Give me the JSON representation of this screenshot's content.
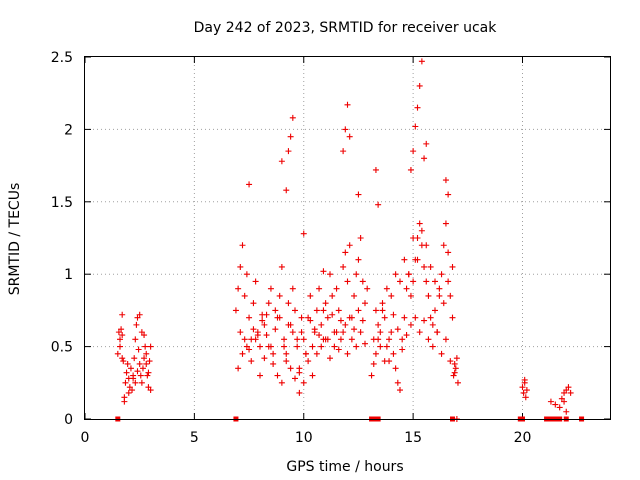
{
  "chart_data": {
    "type": "scatter",
    "title": "Day 242 of 2023, SRMTID for receiver ucak",
    "xlabel": "GPS time / hours",
    "ylabel": "SRMTID / TECUs",
    "xlim": [
      0,
      24
    ],
    "ylim": [
      0,
      2.5
    ],
    "xticks": [
      "0",
      "5",
      "10",
      "15",
      "20"
    ],
    "yticks": [
      "0",
      "0.5",
      "1",
      "1.5",
      "2",
      "2.5"
    ],
    "grid": true,
    "marker": "+",
    "color": "#ee0000",
    "series": [
      {
        "name": "SRMTID",
        "x": [
          1.5,
          1.55,
          1.6,
          1.65,
          1.7,
          1.75,
          1.8,
          1.85,
          1.9,
          1.95,
          2.0,
          2.05,
          2.1,
          2.15,
          2.2,
          2.25,
          2.3,
          2.35,
          2.4,
          2.45,
          2.5,
          2.55,
          2.6,
          2.65,
          2.7,
          2.75,
          2.8,
          2.85,
          2.9,
          2.95,
          3.0,
          1.6,
          1.7,
          1.8,
          2.0,
          2.2,
          2.4,
          2.6,
          2.8,
          3.0,
          1.7,
          2.3,
          2.5,
          2.7,
          2.9,
          6.9,
          7.0,
          7.1,
          7.2,
          7.3,
          7.4,
          7.5,
          7.6,
          7.7,
          7.8,
          7.9,
          8.0,
          8.1,
          8.2,
          8.3,
          8.4,
          8.5,
          8.6,
          8.7,
          8.8,
          8.9,
          9.0,
          9.1,
          9.2,
          9.3,
          9.4,
          9.5,
          9.6,
          9.7,
          9.8,
          9.9,
          10.0,
          10.1,
          10.2,
          10.3,
          10.4,
          10.5,
          10.6,
          10.7,
          10.8,
          10.9,
          11.0,
          11.1,
          11.2,
          11.3,
          11.4,
          11.5,
          11.6,
          11.7,
          11.8,
          11.9,
          12.0,
          12.1,
          12.2,
          12.3,
          12.4,
          12.5,
          12.6,
          12.7,
          12.8,
          12.9,
          7.0,
          7.2,
          7.4,
          7.6,
          7.8,
          8.0,
          8.2,
          8.4,
          8.6,
          8.8,
          9.0,
          9.2,
          9.4,
          9.6,
          9.8,
          10.0,
          10.2,
          10.4,
          10.6,
          10.8,
          11.0,
          11.2,
          11.4,
          11.6,
          11.8,
          12.0,
          12.2,
          12.4,
          12.6,
          12.8,
          7.1,
          7.3,
          7.5,
          7.7,
          7.9,
          8.1,
          8.3,
          8.5,
          8.7,
          8.9,
          9.1,
          9.3,
          9.5,
          9.7,
          9.9,
          10.1,
          10.3,
          10.5,
          10.7,
          10.9,
          11.1,
          11.3,
          11.5,
          11.7,
          11.9,
          12.1,
          12.3,
          12.5,
          12.7,
          7.5,
          9.0,
          9.2,
          9.3,
          9.4,
          9.5,
          11.8,
          11.9,
          12.0,
          12.1,
          10.0,
          10.9,
          12.5,
          9.8,
          13.1,
          13.2,
          13.3,
          13.4,
          13.5,
          13.6,
          13.7,
          13.8,
          13.9,
          14.0,
          14.1,
          14.2,
          14.3,
          14.4,
          14.5,
          14.6,
          14.7,
          14.8,
          14.9,
          15.0,
          15.1,
          15.2,
          15.3,
          15.4,
          15.5,
          15.6,
          15.7,
          15.8,
          15.9,
          16.0,
          16.1,
          16.2,
          16.3,
          16.4,
          16.5,
          16.6,
          16.7,
          16.8,
          13.2,
          13.4,
          13.6,
          13.8,
          14.0,
          14.2,
          14.4,
          14.6,
          14.8,
          15.0,
          15.2,
          15.4,
          15.6,
          15.8,
          16.0,
          16.2,
          16.4,
          16.6,
          16.8,
          13.3,
          13.5,
          13.7,
          13.9,
          14.1,
          14.3,
          14.5,
          14.7,
          14.9,
          15.1,
          15.3,
          15.5,
          15.7,
          15.9,
          16.1,
          16.3,
          16.5,
          16.7,
          14.9,
          15.0,
          15.1,
          15.2,
          15.3,
          15.4,
          15.5,
          15.6,
          13.3,
          13.4,
          16.5,
          16.6,
          16.85,
          16.9,
          16.95,
          17.0,
          17.05,
          16.9,
          17.0,
          20.0,
          20.05,
          20.1,
          20.15,
          20.2,
          20.1,
          21.3,
          21.5,
          21.7,
          21.8,
          21.9,
          22.0,
          22.1,
          22.2,
          21.9,
          22.0
        ],
        "y": [
          0.45,
          0.6,
          0.5,
          0.62,
          0.58,
          0.4,
          0.15,
          0.25,
          0.32,
          0.38,
          0.28,
          0.22,
          0.35,
          0.2,
          0.3,
          0.42,
          0.55,
          0.65,
          0.7,
          0.48,
          0.38,
          0.3,
          0.25,
          0.35,
          0.42,
          0.5,
          0.38,
          0.3,
          0.22,
          0.4,
          0.2,
          0.55,
          0.72,
          0.12,
          0.18,
          0.28,
          0.33,
          0.6,
          0.45,
          0.5,
          0.42,
          0.25,
          0.72,
          0.58,
          0.32,
          0.75,
          0.9,
          1.05,
          1.2,
          0.85,
          1.0,
          0.7,
          0.55,
          0.8,
          0.95,
          0.6,
          0.5,
          0.72,
          0.65,
          0.58,
          0.8,
          0.9,
          0.45,
          0.75,
          0.7,
          0.85,
          1.05,
          0.55,
          0.4,
          0.8,
          0.65,
          0.9,
          0.75,
          0.5,
          0.35,
          0.6,
          0.55,
          0.45,
          0.7,
          0.85,
          0.5,
          0.6,
          0.75,
          0.9,
          0.65,
          0.55,
          0.8,
          0.7,
          1.0,
          0.85,
          0.6,
          0.9,
          0.75,
          0.55,
          1.05,
          1.15,
          0.95,
          1.2,
          0.7,
          0.85,
          1.0,
          1.1,
          1.25,
          0.95,
          0.8,
          0.9,
          0.35,
          0.45,
          0.5,
          0.4,
          0.55,
          0.3,
          0.42,
          0.5,
          0.38,
          0.3,
          0.25,
          0.45,
          0.35,
          0.28,
          0.32,
          0.25,
          0.4,
          0.3,
          0.45,
          0.5,
          0.55,
          0.42,
          0.5,
          0.48,
          0.6,
          0.45,
          0.55,
          0.5,
          0.6,
          0.52,
          0.6,
          0.55,
          0.48,
          0.62,
          0.58,
          0.68,
          0.72,
          0.5,
          0.62,
          0.7,
          0.5,
          0.65,
          0.6,
          0.55,
          0.7,
          0.45,
          0.68,
          0.62,
          0.58,
          0.75,
          0.55,
          0.72,
          0.6,
          0.68,
          0.65,
          0.7,
          0.62,
          0.75,
          0.68,
          1.62,
          1.78,
          1.58,
          1.85,
          1.95,
          2.08,
          1.85,
          2.0,
          2.17,
          1.95,
          1.28,
          1.02,
          1.55,
          0.18,
          0.3,
          0.38,
          0.45,
          0.55,
          0.6,
          0.8,
          0.7,
          0.5,
          0.4,
          0.6,
          0.45,
          0.35,
          0.25,
          0.2,
          0.55,
          0.7,
          0.9,
          1.0,
          0.85,
          0.95,
          1.1,
          1.25,
          1.35,
          1.2,
          1.05,
          0.95,
          0.85,
          0.7,
          0.65,
          0.75,
          0.6,
          0.9,
          1.0,
          1.2,
          1.35,
          1.15,
          0.85,
          0.7,
          0.55,
          0.65,
          0.75,
          0.9,
          0.85,
          1.0,
          0.95,
          1.1,
          1.0,
          1.25,
          1.1,
          1.3,
          1.2,
          1.05,
          0.95,
          0.85,
          0.8,
          0.95,
          1.05,
          0.75,
          0.5,
          0.4,
          0.55,
          0.72,
          0.62,
          0.48,
          0.58,
          0.65,
          0.7,
          0.6,
          0.68,
          0.55,
          0.5,
          0.6,
          0.45,
          0.55,
          0.4,
          1.72,
          1.85,
          2.02,
          2.15,
          2.3,
          2.47,
          1.8,
          1.9,
          1.72,
          1.48,
          1.65,
          1.55,
          0.3,
          0.38,
          0.35,
          0.42,
          0.25,
          0.32,
          0.0,
          0.22,
          0.18,
          0.25,
          0.15,
          0.2,
          0.27,
          0.12,
          0.1,
          0.08,
          0.14,
          0.18,
          0.2,
          0.22,
          0.18,
          0.12,
          0.05
        ],
        "zero_x": [
          1.5,
          6.9,
          13.1,
          13.3,
          13.4,
          16.8,
          19.9,
          20.0,
          21.1,
          21.3,
          21.5,
          21.7,
          22.0,
          22.7
        ]
      }
    ]
  }
}
